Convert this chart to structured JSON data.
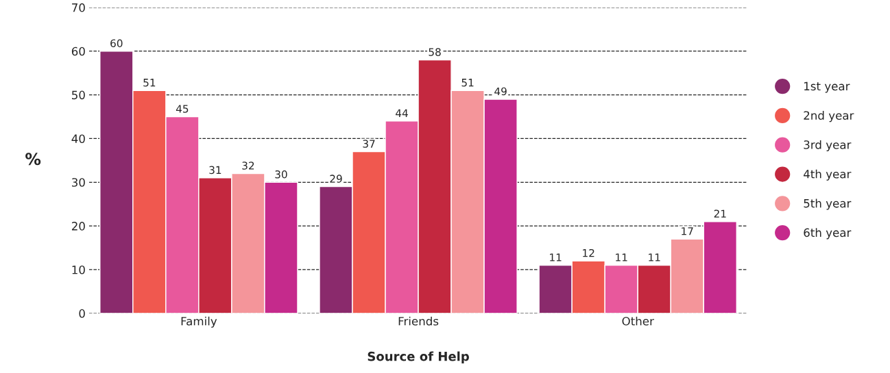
{
  "chart_data": {
    "type": "bar",
    "xlabel": "Source of Help",
    "ylabel": "%",
    "categories": [
      "Family",
      "Friends",
      "Other"
    ],
    "series": [
      {
        "name": "1st year",
        "color": "#8a2a6c",
        "values": [
          60,
          29,
          11
        ]
      },
      {
        "name": "2nd year",
        "color": "#f0584f",
        "values": [
          51,
          37,
          12
        ]
      },
      {
        "name": "3rd year",
        "color": "#e8589c",
        "values": [
          45,
          44,
          11
        ]
      },
      {
        "name": "4th year",
        "color": "#c3283f",
        "values": [
          31,
          58,
          11
        ]
      },
      {
        "name": "5th year",
        "color": "#f4959a",
        "values": [
          32,
          51,
          17
        ]
      },
      {
        "name": "6th year",
        "color": "#c52a8c",
        "values": [
          30,
          49,
          21
        ]
      }
    ],
    "ylim": [
      0,
      70
    ],
    "yticks": [
      0,
      10,
      20,
      30,
      40,
      50,
      60,
      70
    ],
    "grid": "y",
    "legend": "right",
    "data_labels": true
  }
}
